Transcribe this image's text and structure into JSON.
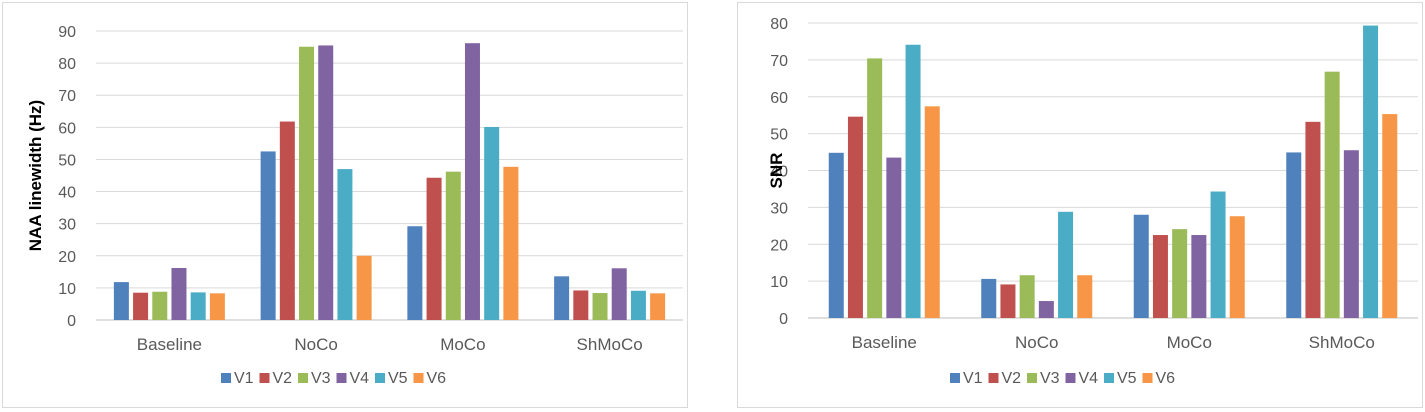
{
  "chart_data": [
    {
      "type": "bar",
      "categories": [
        "Baseline",
        "NoCo",
        "MoCo",
        "ShMoCo"
      ],
      "ylabel": "NAA linewidth (Hz)",
      "ylim": [
        0,
        90
      ],
      "yticks": [
        0,
        10,
        20,
        30,
        40,
        50,
        60,
        70,
        80,
        90
      ],
      "grid": true,
      "legend_position": "bottom",
      "series": [
        {
          "name": "V1",
          "color": "#4f81bd",
          "values": [
            11.8,
            52.5,
            29.2,
            13.6
          ]
        },
        {
          "name": "V2",
          "color": "#c0504d",
          "values": [
            8.5,
            61.8,
            44.3,
            9.2
          ]
        },
        {
          "name": "V3",
          "color": "#9bbb59",
          "values": [
            8.8,
            85.1,
            46.2,
            8.4
          ]
        },
        {
          "name": "V4",
          "color": "#8064a2",
          "values": [
            16.2,
            85.5,
            86.2,
            16.1
          ]
        },
        {
          "name": "V5",
          "color": "#4bacc6",
          "values": [
            8.6,
            47.0,
            60.1,
            9.1
          ]
        },
        {
          "name": "V6",
          "color": "#f79646",
          "values": [
            8.3,
            20.0,
            47.7,
            8.3
          ]
        }
      ]
    },
    {
      "type": "bar",
      "categories": [
        "Baseline",
        "NoCo",
        "MoCo",
        "ShMoCo"
      ],
      "ylabel": "SNR",
      "ylim": [
        0,
        80
      ],
      "yticks": [
        0,
        10,
        20,
        30,
        40,
        50,
        60,
        70,
        80
      ],
      "grid": true,
      "legend_position": "bottom",
      "series": [
        {
          "name": "V1",
          "color": "#4f81bd",
          "values": [
            44.8,
            10.6,
            28.0,
            44.9
          ]
        },
        {
          "name": "V2",
          "color": "#c0504d",
          "values": [
            54.6,
            9.1,
            22.5,
            53.2
          ]
        },
        {
          "name": "V3",
          "color": "#9bbb59",
          "values": [
            70.4,
            11.6,
            24.1,
            66.8
          ]
        },
        {
          "name": "V4",
          "color": "#8064a2",
          "values": [
            43.5,
            4.6,
            22.5,
            45.5
          ]
        },
        {
          "name": "V5",
          "color": "#4bacc6",
          "values": [
            74.1,
            28.8,
            34.3,
            79.3
          ]
        },
        {
          "name": "V6",
          "color": "#f79646",
          "values": [
            57.4,
            11.6,
            27.6,
            55.3
          ]
        }
      ]
    }
  ]
}
